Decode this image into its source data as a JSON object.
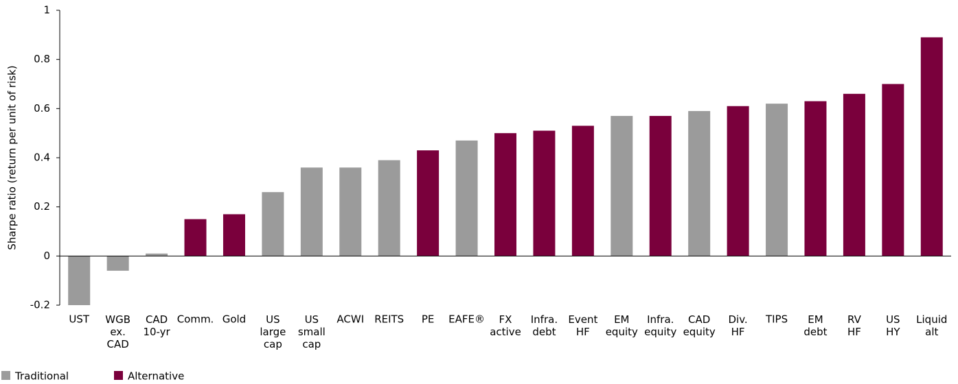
{
  "chart_data": {
    "type": "bar",
    "ylabel": "Sharpe ratio (return per unit of risk)",
    "categories": [
      "UST",
      "WGB\nex.\nCAD",
      "CAD\n10-yr",
      "Comm.",
      "Gold",
      "US\nlarge\ncap",
      "US\nsmall\ncap",
      "ACWI",
      "REITS",
      "PE",
      "EAFE®",
      "FX\nactive",
      "Infra.\ndebt",
      "Event\nHF",
      "EM\nequity",
      "Infra.\nequity",
      "CAD\nequity",
      "Div.\nHF",
      "TIPS",
      "EM\ndebt",
      "RV\nHF",
      "US\nHY",
      "Liquid\nalt"
    ],
    "series": [
      {
        "name": "Traditional",
        "color": "#9b9b9b",
        "values": [
          -0.2,
          -0.06,
          0.01,
          null,
          null,
          0.26,
          0.36,
          0.36,
          0.39,
          null,
          0.47,
          null,
          null,
          null,
          0.57,
          null,
          0.59,
          null,
          0.62,
          null,
          null,
          null,
          null
        ]
      },
      {
        "name": "Alternative",
        "color": "#7a003c",
        "values": [
          null,
          null,
          null,
          0.15,
          0.17,
          null,
          null,
          null,
          null,
          0.43,
          null,
          0.5,
          0.51,
          0.53,
          null,
          0.57,
          null,
          0.61,
          null,
          0.63,
          0.66,
          0.7,
          0.89
        ]
      }
    ],
    "ylim": [
      -0.2,
      1
    ],
    "yticks": [
      -0.2,
      0,
      0.2,
      0.4,
      0.6,
      0.8,
      1
    ],
    "grid": false,
    "legend": "bottom-left"
  }
}
